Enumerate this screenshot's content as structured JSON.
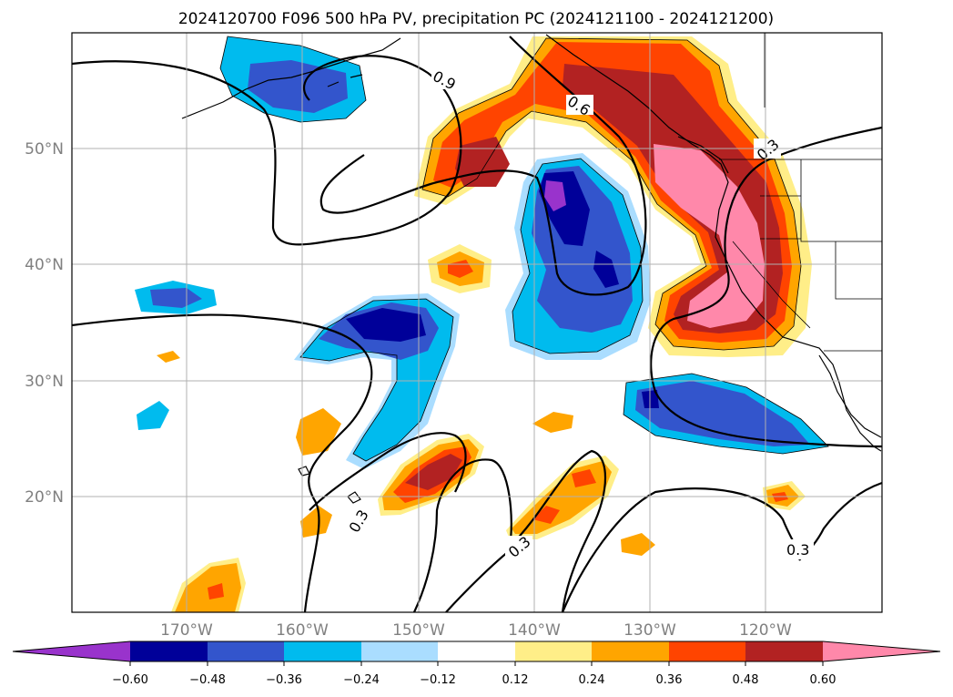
{
  "title": "2024120700 F096 500 hPa PV, precipitation PC (2024121100 - 2024121200)",
  "map": {
    "lat_labels": [
      "50°N",
      "40°N",
      "30°N",
      "20°N"
    ],
    "lon_labels": [
      "170°W",
      "160°W",
      "150°W",
      "140°W",
      "130°W",
      "120°W"
    ]
  },
  "pv_contour_labels": [
    "0.9",
    "0.6",
    "0.3",
    "0.3",
    "0.3",
    "0.3"
  ],
  "colorbar": {
    "colors": [
      "#9933cc",
      "#000099",
      "#3355cc",
      "#00bbee",
      "#aaddff",
      "#ffffff",
      "#ffee88",
      "#ffa500",
      "#ff4400",
      "#b22222",
      "#ff88aa"
    ],
    "tick_labels": [
      "−0.60",
      "−0.48",
      "−0.36",
      "−0.24",
      "−0.12",
      "0.12",
      "0.24",
      "0.36",
      "0.48",
      "0.60"
    ]
  }
}
